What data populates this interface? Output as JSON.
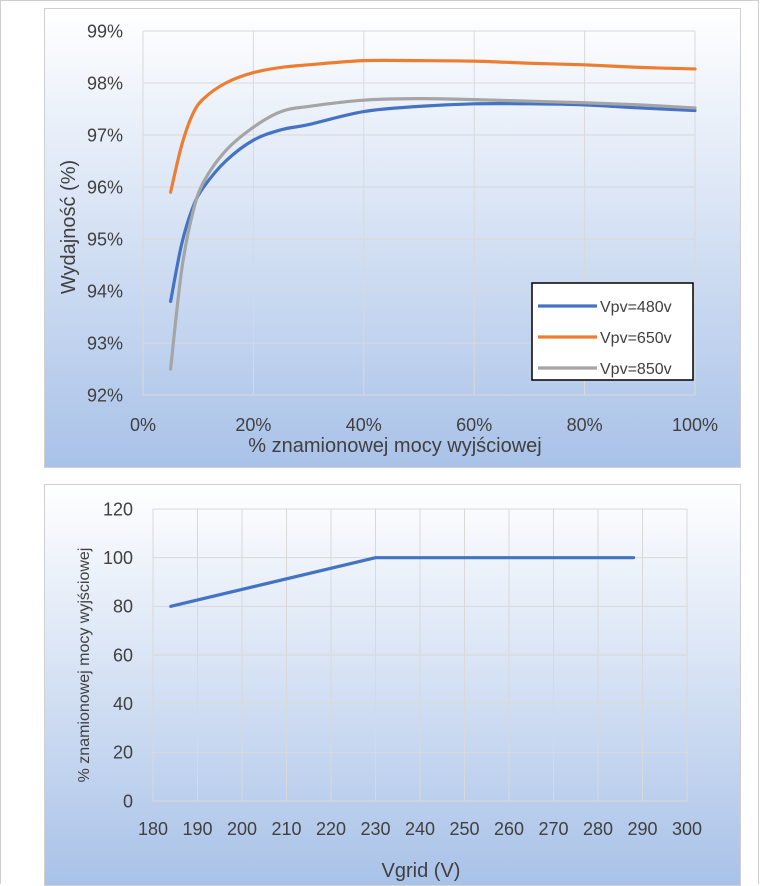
{
  "colors": {
    "series_blue": "#4472C4",
    "series_orange": "#ED7D31",
    "series_gray": "#A5A5A5",
    "gradient_top": "#ffffff",
    "gradient_bottom": "#a9c2e8",
    "grid": "#d9d9d9"
  },
  "chart_data": [
    {
      "type": "line",
      "title": "",
      "xlabel": "% znamionowej mocy wyjściowej",
      "ylabel": "Wydajność (%)",
      "xlim": [
        0,
        100
      ],
      "ylim": [
        92,
        99
      ],
      "x_ticks": [
        "0%",
        "20%",
        "40%",
        "60%",
        "80%",
        "100%"
      ],
      "y_ticks": [
        "92%",
        "93%",
        "94%",
        "95%",
        "96%",
        "97%",
        "98%",
        "99%"
      ],
      "x_tick_values": [
        0,
        20,
        40,
        60,
        80,
        100
      ],
      "y_tick_values": [
        92,
        93,
        94,
        95,
        96,
        97,
        98,
        99
      ],
      "grid": true,
      "legend_position": "lower-right",
      "series": [
        {
          "name": "Vpv=480v",
          "color": "#4472C4",
          "points": [
            [
              5,
              93.8
            ],
            [
              7,
              94.9
            ],
            [
              9,
              95.6
            ],
            [
              11,
              96.0
            ],
            [
              15,
              96.5
            ],
            [
              20,
              96.9
            ],
            [
              25,
              97.1
            ],
            [
              30,
              97.2
            ],
            [
              40,
              97.45
            ],
            [
              50,
              97.55
            ],
            [
              60,
              97.6
            ],
            [
              70,
              97.6
            ],
            [
              80,
              97.58
            ],
            [
              90,
              97.52
            ],
            [
              100,
              97.47
            ]
          ]
        },
        {
          "name": "Vpv=650v",
          "color": "#ED7D31",
          "points": [
            [
              5,
              95.9
            ],
            [
              7,
              96.8
            ],
            [
              9,
              97.4
            ],
            [
              11,
              97.7
            ],
            [
              15,
              98.0
            ],
            [
              20,
              98.2
            ],
            [
              25,
              98.3
            ],
            [
              30,
              98.35
            ],
            [
              40,
              98.43
            ],
            [
              50,
              98.43
            ],
            [
              60,
              98.42
            ],
            [
              70,
              98.38
            ],
            [
              80,
              98.35
            ],
            [
              90,
              98.3
            ],
            [
              100,
              98.27
            ]
          ]
        },
        {
          "name": "Vpv=850v",
          "color": "#A5A5A5",
          "points": [
            [
              5,
              92.5
            ],
            [
              7,
              94.4
            ],
            [
              9,
              95.5
            ],
            [
              11,
              96.1
            ],
            [
              15,
              96.7
            ],
            [
              20,
              97.15
            ],
            [
              25,
              97.45
            ],
            [
              30,
              97.55
            ],
            [
              40,
              97.67
            ],
            [
              50,
              97.7
            ],
            [
              60,
              97.68
            ],
            [
              70,
              97.65
            ],
            [
              80,
              97.62
            ],
            [
              90,
              97.58
            ],
            [
              100,
              97.52
            ]
          ]
        }
      ]
    },
    {
      "type": "line",
      "title": "",
      "xlabel": "Vgrid (V)",
      "ylabel": "% znamionowej mocy wyjściowej",
      "xlim": [
        180,
        300
      ],
      "ylim": [
        0,
        120
      ],
      "x_ticks": [
        "180",
        "190",
        "200",
        "210",
        "220",
        "230",
        "240",
        "250",
        "260",
        "270",
        "280",
        "290",
        "300"
      ],
      "y_ticks": [
        "0",
        "20",
        "40",
        "60",
        "80",
        "100",
        "120"
      ],
      "x_tick_values": [
        180,
        190,
        200,
        210,
        220,
        230,
        240,
        250,
        260,
        270,
        280,
        290,
        300
      ],
      "y_tick_values": [
        0,
        20,
        40,
        60,
        80,
        100,
        120
      ],
      "grid": true,
      "series": [
        {
          "color": "#4472C4",
          "points": [
            [
              184,
              80
            ],
            [
              230,
              100
            ],
            [
              288,
              100
            ]
          ]
        }
      ]
    }
  ]
}
